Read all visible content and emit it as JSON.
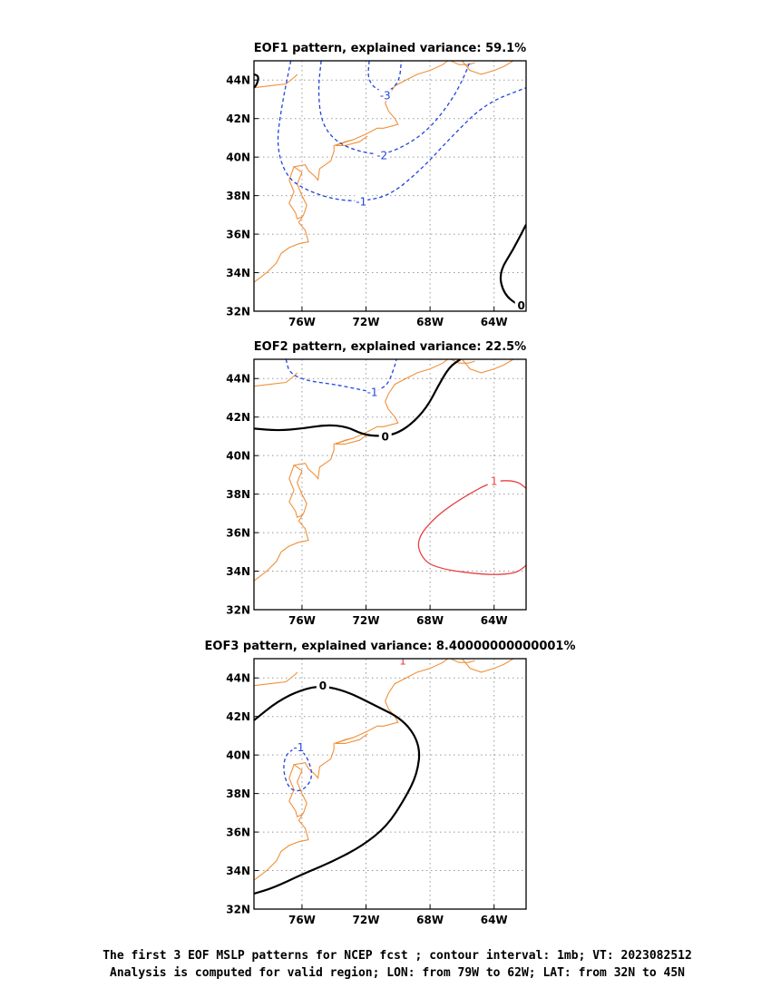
{
  "figure": {
    "footer_line1": "The first 3 EOF MSLP patterns for NCEP fcst ; contour interval: 1mb; VT: 2023082512",
    "footer_line2": "Analysis is computed for valid region; LON: from 79W to 62W; LAT: from 32N to 45N"
  },
  "colors": {
    "coastline": "#f0903a",
    "negative": "#2244dd",
    "zero": "#000000",
    "positive": "#e84040",
    "grid": "#999999"
  },
  "axes": {
    "lon_range": [
      -79,
      -62
    ],
    "lat_range": [
      32,
      45
    ],
    "x_ticks": [
      {
        "value": -76,
        "label": "76W"
      },
      {
        "value": -72,
        "label": "72W"
      },
      {
        "value": -68,
        "label": "68W"
      },
      {
        "value": -64,
        "label": "64W"
      }
    ],
    "y_ticks": [
      {
        "value": 32,
        "label": "32N"
      },
      {
        "value": 34,
        "label": "34N"
      },
      {
        "value": 36,
        "label": "36N"
      },
      {
        "value": 38,
        "label": "38N"
      },
      {
        "value": 40,
        "label": "40N"
      },
      {
        "value": 42,
        "label": "42N"
      },
      {
        "value": 44,
        "label": "44N"
      }
    ]
  },
  "panels": [
    {
      "title": "EOF1 pattern, explained variance: 59.1%",
      "contours": [
        {
          "label": "-3",
          "sign": "negative",
          "label_at": [
            -70.8,
            43.2
          ],
          "points": [
            [
              -71.8,
              45
            ],
            [
              -71.9,
              44.1
            ],
            [
              -71.4,
              43.5
            ],
            [
              -70.5,
              43.4
            ],
            [
              -69.9,
              44.0
            ],
            [
              -69.8,
              45
            ]
          ]
        },
        {
          "label": "-2",
          "sign": "negative",
          "label_at": [
            -71.0,
            40.1
          ],
          "points": [
            [
              -74.8,
              45
            ],
            [
              -75.0,
              43.5
            ],
            [
              -74.8,
              41.8
            ],
            [
              -73.9,
              40.8
            ],
            [
              -72.5,
              40.3
            ],
            [
              -71.0,
              40.1
            ],
            [
              -69.5,
              40.6
            ],
            [
              -68.0,
              41.5
            ],
            [
              -66.6,
              43.0
            ],
            [
              -65.8,
              44.3
            ],
            [
              -65.5,
              45
            ]
          ]
        },
        {
          "label": "-1",
          "sign": "negative",
          "label_at": [
            -72.3,
            37.7
          ],
          "points": [
            [
              -76.7,
              45
            ],
            [
              -77.3,
              42.5
            ],
            [
              -77.6,
              40.6
            ],
            [
              -77.0,
              39.0
            ],
            [
              -75.8,
              38.3
            ],
            [
              -74.0,
              37.8
            ],
            [
              -72.3,
              37.7
            ],
            [
              -70.5,
              38.0
            ],
            [
              -68.5,
              39.4
            ],
            [
              -66.5,
              41.2
            ],
            [
              -64.5,
              42.8
            ],
            [
              -62.0,
              43.6
            ]
          ]
        },
        {
          "label": "0",
          "sign": "zero",
          "label_at": [
            -62.3,
            32.3
          ],
          "points": [
            [
              -62.0,
              36.5
            ],
            [
              -62.8,
              35.2
            ],
            [
              -63.7,
              34.0
            ],
            [
              -63.4,
              32.9
            ],
            [
              -62.5,
              32.3
            ],
            [
              -62.0,
              32.2
            ]
          ]
        },
        {
          "label": "",
          "sign": "zero",
          "label_at": null,
          "points": [
            [
              -79.0,
              44.3
            ],
            [
              -78.7,
              44.2
            ],
            [
              -78.8,
              43.8
            ],
            [
              -79.0,
              43.6
            ]
          ]
        }
      ]
    },
    {
      "title": "EOF2 pattern, explained variance: 22.5%",
      "contours": [
        {
          "label": "-1",
          "sign": "negative",
          "label_at": [
            -71.6,
            43.3
          ],
          "points": [
            [
              -77.0,
              45
            ],
            [
              -76.8,
              44.3
            ],
            [
              -75.8,
              43.9
            ],
            [
              -74.0,
              43.7
            ],
            [
              -72.8,
              43.5
            ],
            [
              -71.6,
              43.3
            ],
            [
              -70.7,
              43.6
            ],
            [
              -70.3,
              44.4
            ],
            [
              -70.1,
              45
            ]
          ]
        },
        {
          "label": "0",
          "sign": "zero",
          "label_at": [
            -70.8,
            41.0
          ],
          "points": [
            [
              -79.0,
              41.4
            ],
            [
              -77.5,
              41.3
            ],
            [
              -76.0,
              41.4
            ],
            [
              -74.5,
              41.6
            ],
            [
              -73.2,
              41.5
            ],
            [
              -72.2,
              41.1
            ],
            [
              -71.2,
              41.0
            ],
            [
              -70.2,
              41.1
            ],
            [
              -69.2,
              41.6
            ],
            [
              -68.2,
              42.5
            ],
            [
              -67.5,
              43.6
            ],
            [
              -66.8,
              44.6
            ],
            [
              -66.1,
              45
            ]
          ]
        },
        {
          "label": "1",
          "sign": "positive",
          "label_at": [
            -64.0,
            38.7
          ],
          "points": [
            [
              -62.0,
              38.3
            ],
            [
              -62.6,
              38.7
            ],
            [
              -64.0,
              38.7
            ],
            [
              -65.8,
              37.9
            ],
            [
              -67.6,
              36.9
            ],
            [
              -68.9,
              35.6
            ],
            [
              -68.4,
              34.5
            ],
            [
              -67.2,
              34.1
            ],
            [
              -65.5,
              33.9
            ],
            [
              -64.0,
              33.8
            ],
            [
              -62.6,
              33.9
            ],
            [
              -62.0,
              34.3
            ]
          ]
        }
      ]
    },
    {
      "title": "EOF3 pattern, explained variance: 8.40000000000001%",
      "contours": [
        {
          "label": "0",
          "sign": "zero",
          "label_at": [
            -74.7,
            43.6
          ],
          "points": [
            [
              -79.0,
              41.8
            ],
            [
              -77.5,
              42.8
            ],
            [
              -76.0,
              43.4
            ],
            [
              -74.7,
              43.6
            ],
            [
              -73.2,
              43.3
            ],
            [
              -71.5,
              42.6
            ],
            [
              -69.6,
              41.8
            ],
            [
              -68.6,
              40.5
            ],
            [
              -68.8,
              39.0
            ],
            [
              -69.6,
              37.7
            ],
            [
              -70.7,
              36.3
            ],
            [
              -72.2,
              35.3
            ],
            [
              -74.0,
              34.5
            ],
            [
              -76.0,
              33.8
            ],
            [
              -77.8,
              33.1
            ],
            [
              -79.0,
              32.8
            ]
          ]
        },
        {
          "label": "-1",
          "sign": "negative",
          "label_at": [
            -76.2,
            40.4
          ],
          "points": [
            [
              -76.2,
              40.4
            ],
            [
              -75.6,
              39.8
            ],
            [
              -75.3,
              38.8
            ],
            [
              -76.0,
              38.1
            ],
            [
              -76.8,
              38.2
            ],
            [
              -77.2,
              39.2
            ],
            [
              -77.0,
              40.1
            ],
            [
              -76.2,
              40.4
            ]
          ]
        },
        {
          "label": "1",
          "sign": "positive",
          "label_at": [
            -69.7,
            44.9
          ],
          "points": []
        }
      ]
    }
  ],
  "coastline": [
    [
      [
        -79.0,
        33.5
      ],
      [
        -78.2,
        34.0
      ],
      [
        -77.6,
        34.5
      ],
      [
        -77.3,
        35.0
      ],
      [
        -76.8,
        35.3
      ],
      [
        -76.2,
        35.5
      ],
      [
        -75.6,
        35.6
      ],
      [
        -75.8,
        36.2
      ],
      [
        -76.2,
        36.6
      ],
      [
        -75.9,
        37.0
      ],
      [
        -75.7,
        37.5
      ],
      [
        -76.0,
        38.0
      ],
      [
        -76.3,
        38.6
      ],
      [
        -76.0,
        39.2
      ],
      [
        -76.5,
        39.5
      ],
      [
        -75.8,
        39.6
      ],
      [
        -75.6,
        39.3
      ],
      [
        -75.2,
        39.0
      ],
      [
        -75.0,
        38.8
      ],
      [
        -74.9,
        39.4
      ],
      [
        -74.2,
        39.8
      ],
      [
        -74.0,
        40.3
      ],
      [
        -74.0,
        40.6
      ],
      [
        -73.6,
        40.7
      ],
      [
        -72.8,
        40.9
      ],
      [
        -72.0,
        41.2
      ],
      [
        -71.3,
        41.5
      ],
      [
        -70.9,
        41.5
      ],
      [
        -70.0,
        41.7
      ],
      [
        -70.2,
        42.0
      ],
      [
        -70.6,
        42.4
      ],
      [
        -70.8,
        42.8
      ],
      [
        -70.6,
        43.2
      ],
      [
        -70.2,
        43.7
      ],
      [
        -69.5,
        44.0
      ],
      [
        -68.8,
        44.3
      ],
      [
        -68.0,
        44.5
      ],
      [
        -67.2,
        44.8
      ],
      [
        -66.9,
        45.0
      ]
    ],
    [
      [
        -76.5,
        39.5
      ],
      [
        -76.8,
        38.8
      ],
      [
        -76.5,
        38.2
      ],
      [
        -76.8,
        37.6
      ],
      [
        -76.4,
        37.1
      ],
      [
        -76.3,
        36.8
      ],
      [
        -76.0,
        36.9
      ]
    ],
    [
      [
        -72.8,
        40.9
      ],
      [
        -73.3,
        40.8
      ],
      [
        -73.9,
        40.6
      ],
      [
        -73.3,
        40.6
      ],
      [
        -72.4,
        40.8
      ],
      [
        -71.9,
        41.1
      ]
    ],
    [
      [
        -79.0,
        43.6
      ],
      [
        -78.0,
        43.7
      ],
      [
        -77.0,
        43.8
      ],
      [
        -76.4,
        44.2
      ],
      [
        -76.3,
        44.3
      ]
    ],
    [
      [
        -66.0,
        45.0
      ],
      [
        -65.5,
        44.5
      ],
      [
        -64.8,
        44.3
      ],
      [
        -64.0,
        44.5
      ],
      [
        -63.4,
        44.7
      ],
      [
        -62.8,
        45.0
      ]
    ],
    [
      [
        -66.7,
        45.0
      ],
      [
        -66.2,
        44.8
      ],
      [
        -65.6,
        44.8
      ],
      [
        -65.2,
        44.9
      ]
    ]
  ]
}
